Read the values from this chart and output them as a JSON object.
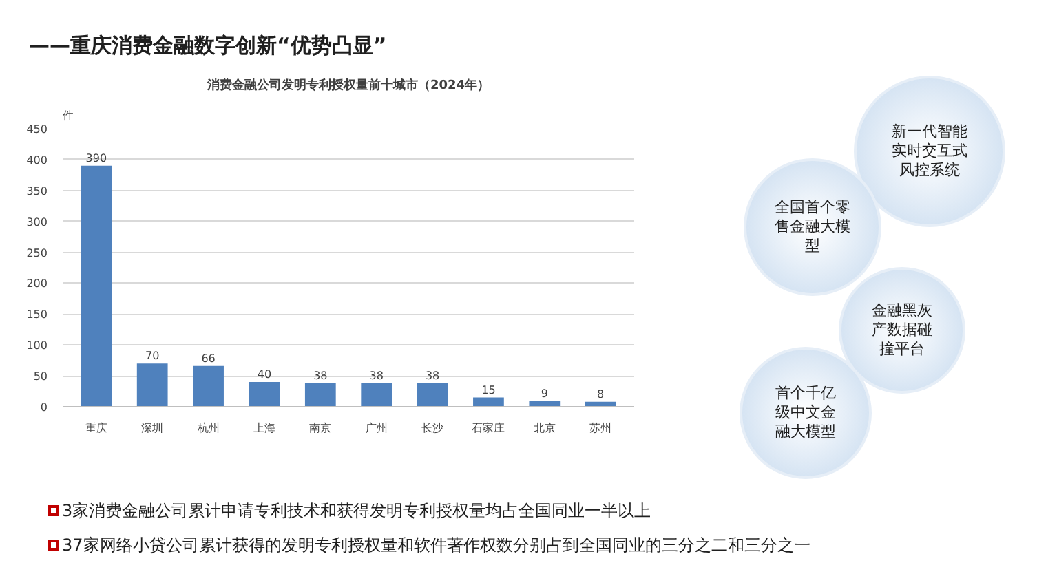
{
  "chart_data": {
    "type": "bar",
    "title": "——重庆消费金融数字创新“优势凸显”",
    "subtitle": "消费金融公司发明专利授权量前十城市（2024年）",
    "ylabel": "件",
    "categories": [
      "重庆",
      "深圳",
      "杭州",
      "上海",
      "南京",
      "广州",
      "长沙",
      "石家庄",
      "北京",
      "苏州"
    ],
    "values": [
      390,
      70,
      66,
      40,
      38,
      38,
      38,
      15,
      9,
      8
    ],
    "color": "#4f81bd",
    "data_labels": true,
    "ylim": [
      0,
      450
    ],
    "yticks": [
      0,
      50,
      100,
      150,
      200,
      250,
      300,
      350,
      400,
      450
    ],
    "grid": "y",
    "annotations": [
      "新一代智能实时交互式风控系统",
      "全国首个零售金融大模型",
      "金融黑灰产数据碰撞平台",
      "首个千亿级中文金融大模型",
      "3家消费金融公司累计申请专利技术和获得发明专利授权量均占全国同业一半以上",
      "37家网络小贷公司累计获得的发明专利授权量和软件著作权数分别占到全国同业的三分之二和三分之一"
    ]
  }
}
